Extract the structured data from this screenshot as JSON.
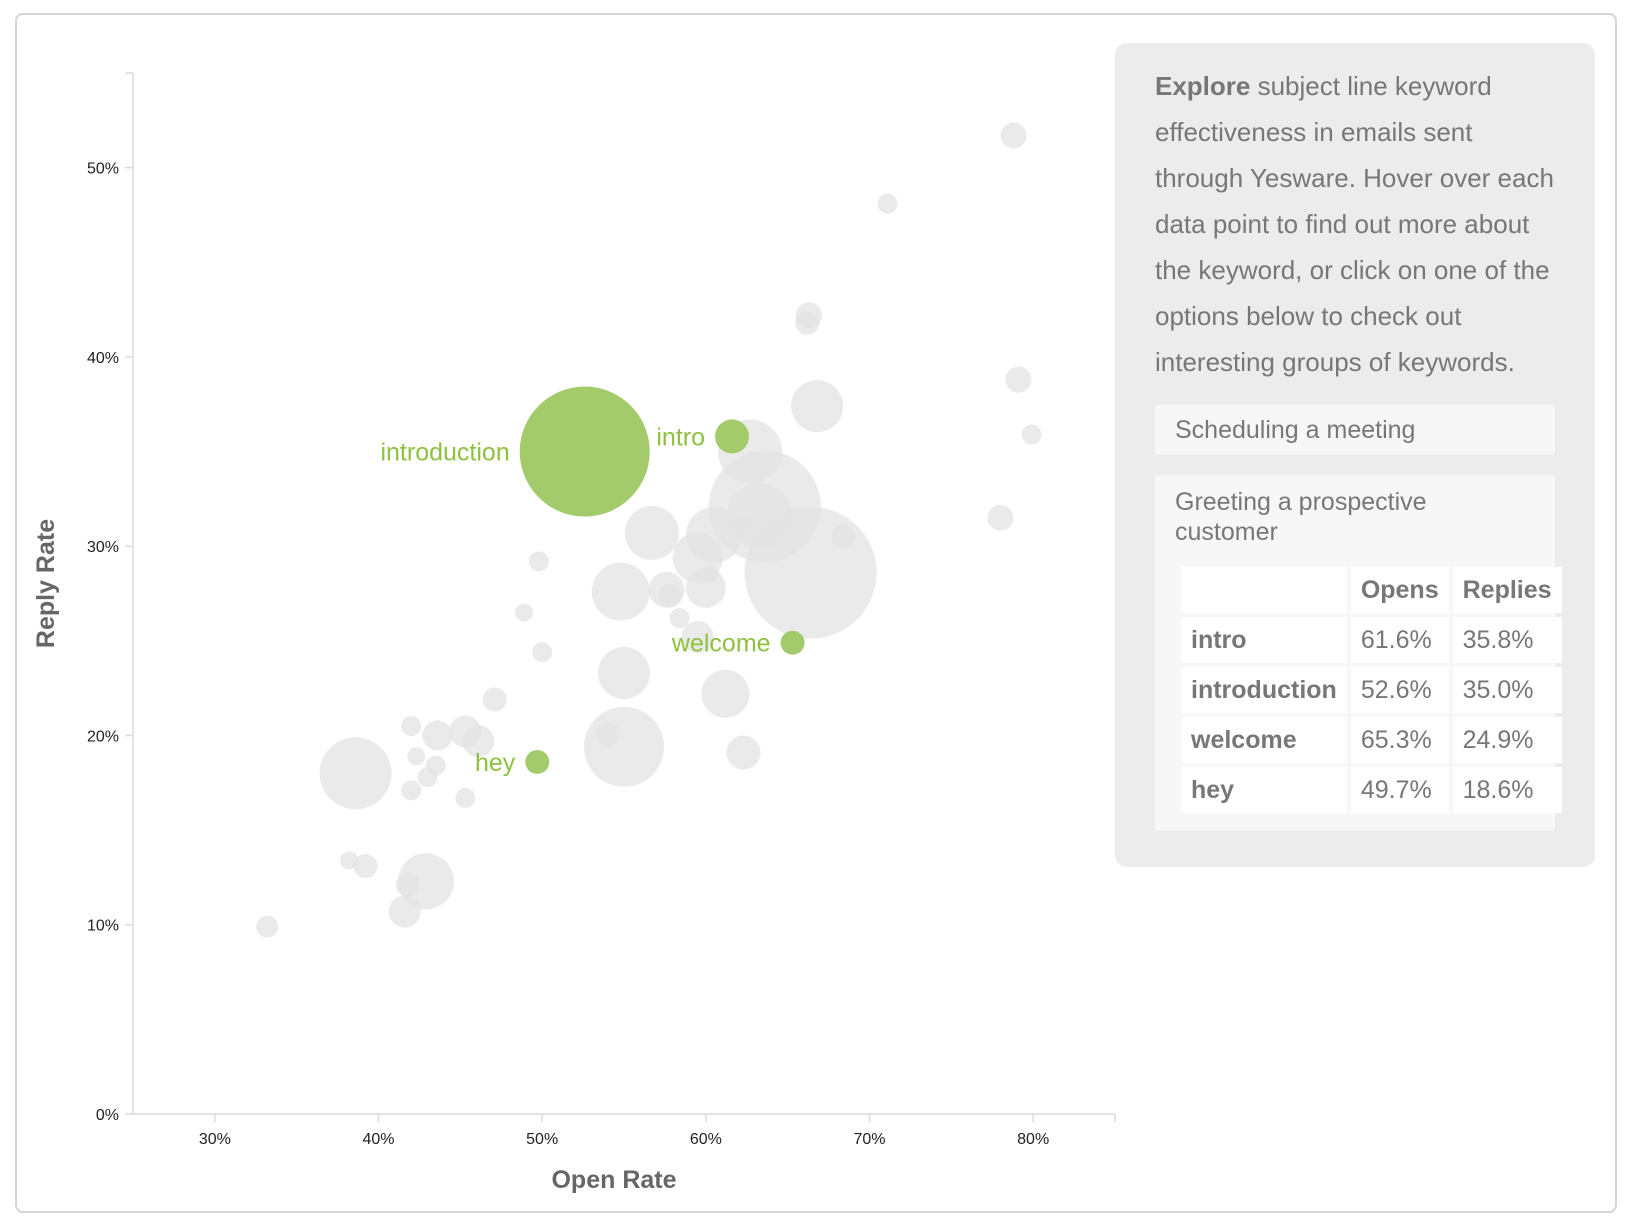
{
  "chart_data": {
    "type": "scatter",
    "xlabel": "Open Rate",
    "ylabel": "Reply Rate",
    "xlim": [
      25,
      85
    ],
    "ylim": [
      0,
      55
    ],
    "x_ticks": [
      30,
      40,
      50,
      60,
      70,
      80
    ],
    "y_ticks": [
      0,
      10,
      20,
      30,
      40,
      50
    ],
    "x_tick_labels": [
      "30%",
      "40%",
      "50%",
      "60%",
      "70%",
      "80%"
    ],
    "y_tick_labels": [
      "0%",
      "10%",
      "20%",
      "30%",
      "40%",
      "50%"
    ],
    "grid": false,
    "colors": {
      "background_points": "#e3e3e3",
      "highlight": "#a3cb6b",
      "highlight_label": "#8dc13f"
    },
    "background_points": [
      {
        "x": 33.2,
        "y": 9.9,
        "size": 11
      },
      {
        "x": 38.2,
        "y": 13.4,
        "size": 9
      },
      {
        "x": 39.2,
        "y": 13.1,
        "size": 12
      },
      {
        "x": 38.6,
        "y": 18.0,
        "size": 36
      },
      {
        "x": 41.6,
        "y": 10.7,
        "size": 16
      },
      {
        "x": 41.8,
        "y": 12.1,
        "size": 12
      },
      {
        "x": 42.9,
        "y": 12.3,
        "size": 28
      },
      {
        "x": 42.0,
        "y": 17.1,
        "size": 10
      },
      {
        "x": 42.0,
        "y": 20.5,
        "size": 10
      },
      {
        "x": 42.3,
        "y": 18.9,
        "size": 9
      },
      {
        "x": 43.0,
        "y": 17.8,
        "size": 10
      },
      {
        "x": 43.5,
        "y": 18.4,
        "size": 10
      },
      {
        "x": 43.6,
        "y": 20.0,
        "size": 15
      },
      {
        "x": 45.3,
        "y": 16.7,
        "size": 10
      },
      {
        "x": 45.3,
        "y": 20.2,
        "size": 16
      },
      {
        "x": 46.1,
        "y": 19.7,
        "size": 16
      },
      {
        "x": 47.1,
        "y": 21.9,
        "size": 12
      },
      {
        "x": 48.9,
        "y": 26.5,
        "size": 9
      },
      {
        "x": 49.8,
        "y": 29.2,
        "size": 10
      },
      {
        "x": 50.0,
        "y": 24.4,
        "size": 10
      },
      {
        "x": 54.0,
        "y": 20.1,
        "size": 12
      },
      {
        "x": 55.0,
        "y": 19.4,
        "size": 40
      },
      {
        "x": 55.0,
        "y": 23.3,
        "size": 26
      },
      {
        "x": 54.8,
        "y": 27.6,
        "size": 29
      },
      {
        "x": 56.7,
        "y": 30.7,
        "size": 27
      },
      {
        "x": 57.6,
        "y": 27.7,
        "size": 18
      },
      {
        "x": 57.8,
        "y": 27.4,
        "size": 12
      },
      {
        "x": 58.4,
        "y": 26.2,
        "size": 10
      },
      {
        "x": 59.5,
        "y": 29.4,
        "size": 25
      },
      {
        "x": 59.5,
        "y": 25.2,
        "size": 16
      },
      {
        "x": 60.0,
        "y": 27.8,
        "size": 20
      },
      {
        "x": 60.2,
        "y": 28.5,
        "size": 9
      },
      {
        "x": 60.5,
        "y": 30.6,
        "size": 28
      },
      {
        "x": 61.2,
        "y": 22.2,
        "size": 24
      },
      {
        "x": 62.3,
        "y": 19.1,
        "size": 17
      },
      {
        "x": 62.3,
        "y": 31.1,
        "size": 10
      },
      {
        "x": 62.7,
        "y": 35.0,
        "size": 32
      },
      {
        "x": 63.3,
        "y": 31.6,
        "size": 33
      },
      {
        "x": 63.6,
        "y": 32.1,
        "size": 56
      },
      {
        "x": 66.4,
        "y": 28.6,
        "size": 66
      },
      {
        "x": 66.2,
        "y": 41.8,
        "size": 12
      },
      {
        "x": 66.3,
        "y": 42.2,
        "size": 13
      },
      {
        "x": 66.8,
        "y": 37.4,
        "size": 26
      },
      {
        "x": 68.4,
        "y": 30.5,
        "size": 12
      },
      {
        "x": 71.1,
        "y": 48.1,
        "size": 10
      },
      {
        "x": 78.0,
        "y": 31.5,
        "size": 13
      },
      {
        "x": 78.8,
        "y": 51.7,
        "size": 13
      },
      {
        "x": 79.1,
        "y": 38.8,
        "size": 13
      },
      {
        "x": 79.9,
        "y": 35.9,
        "size": 10
      }
    ],
    "highlighted": [
      {
        "label": "intro",
        "x": 61.6,
        "y": 35.8,
        "size": 17
      },
      {
        "label": "introduction",
        "x": 52.6,
        "y": 35.0,
        "size": 65
      },
      {
        "label": "welcome",
        "x": 65.3,
        "y": 24.9,
        "size": 12
      },
      {
        "label": "hey",
        "x": 49.7,
        "y": 18.6,
        "size": 12
      }
    ]
  },
  "panel": {
    "intro_bold": "Explore",
    "intro_text": " subject line keyword effectiveness in emails sent through Yesware. Hover over each data point to find out more about the keyword, or click on one of the options below to check out interesting groups of keywords.",
    "options": [
      {
        "label": "Scheduling a meeting"
      },
      {
        "label": "Greeting a prospective customer"
      }
    ],
    "table": {
      "headers": [
        "",
        "Opens",
        "Replies"
      ],
      "rows": [
        [
          "intro",
          "61.6%",
          "35.8%"
        ],
        [
          "introduction",
          "52.6%",
          "35.0%"
        ],
        [
          "welcome",
          "65.3%",
          "24.9%"
        ],
        [
          "hey",
          "49.7%",
          "18.6%"
        ]
      ]
    }
  }
}
